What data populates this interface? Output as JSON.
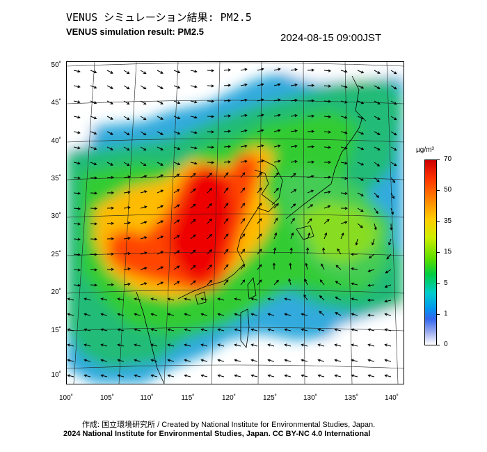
{
  "title_jp": "VENUS シミュレーション結果: PM2.5",
  "title_en": "VENUS simulation result: PM2.5",
  "timestamp": "2024-08-15 09:00JST",
  "lat_ticks": [
    "50˚",
    "45˚",
    "40˚",
    "35˚",
    "30˚",
    "25˚",
    "20˚",
    "15˚",
    "10˚"
  ],
  "lon_ticks": [
    "100˚",
    "105˚",
    "110˚",
    "115˚",
    "120˚",
    "125˚",
    "130˚",
    "135˚",
    "140˚"
  ],
  "colorbar": {
    "unit": "µg/m³",
    "labels": [
      "70",
      "50",
      "35",
      "15",
      "5",
      "1",
      "0"
    ]
  },
  "credit_line1": "作成: 国立環境研究所 / Created by National Institute for Environmental Studies, Japan.",
  "credit_line2": "2024 National Institute for Environmental Studies, Japan. CC BY-NC 4.0 International",
  "colors": {
    "high": "#ff0000",
    "mid": "#ffcc00",
    "low": "#00cc44",
    "clean": "#3366ee",
    "nodata": "#ffffff"
  }
}
